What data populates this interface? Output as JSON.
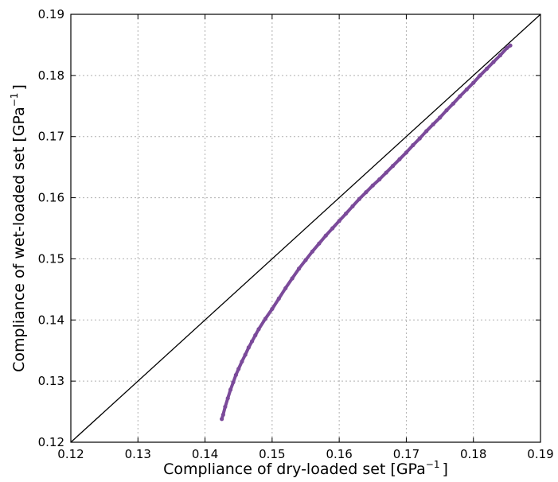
{
  "chart_data": {
    "type": "scatter",
    "title": "",
    "xlabel_main": "Compliance of dry-loaded set [GPa",
    "xlabel_sup": "−1",
    "xlabel_end": "]",
    "ylabel_main": "Compliance of wet-loaded set [GPa",
    "ylabel_sup": "−1",
    "ylabel_end": "]",
    "xlim": [
      0.12,
      0.19
    ],
    "ylim": [
      0.12,
      0.19
    ],
    "xticks": [
      0.12,
      0.13,
      0.14,
      0.15,
      0.16,
      0.17,
      0.18,
      0.19
    ],
    "yticks": [
      0.12,
      0.13,
      0.14,
      0.15,
      0.16,
      0.17,
      0.18,
      0.19
    ],
    "tick_labels": [
      "0.12",
      "0.13",
      "0.14",
      "0.15",
      "0.16",
      "0.17",
      "0.18",
      "0.19"
    ],
    "grid": true,
    "grid_style": "dotted",
    "reference_line": {
      "x": [
        0.12,
        0.19
      ],
      "y": [
        0.12,
        0.19
      ],
      "color": "#000000"
    },
    "series": [
      {
        "color": "#7b4a9a",
        "x": [
          0.1425,
          0.1427,
          0.143,
          0.1434,
          0.1438,
          0.1442,
          0.1446,
          0.145,
          0.1455,
          0.146,
          0.1465,
          0.147,
          0.1475,
          0.148,
          0.149,
          0.15,
          0.151,
          0.152,
          0.153,
          0.154,
          0.155,
          0.156,
          0.157,
          0.158,
          0.159,
          0.16,
          0.161,
          0.162,
          0.163,
          0.164,
          0.165,
          0.166,
          0.167,
          0.168,
          0.169,
          0.17,
          0.171,
          0.172,
          0.173,
          0.174,
          0.175,
          0.176,
          0.177,
          0.178,
          0.179,
          0.18,
          0.181,
          0.182,
          0.183,
          0.184,
          0.185,
          0.1855
        ],
        "y": [
          0.1238,
          0.1245,
          0.1258,
          0.1272,
          0.1286,
          0.1298,
          0.131,
          0.132,
          0.1332,
          0.1343,
          0.1355,
          0.1365,
          0.1375,
          0.1385,
          0.1402,
          0.1418,
          0.1435,
          0.1452,
          0.1468,
          0.1484,
          0.1498,
          0.1512,
          0.1525,
          0.1538,
          0.155,
          0.1562,
          0.1574,
          0.1586,
          0.1598,
          0.1609,
          0.162,
          0.163,
          0.1641,
          0.1652,
          0.1663,
          0.1674,
          0.1686,
          0.1697,
          0.1709,
          0.172,
          0.1731,
          0.1743,
          0.1754,
          0.1766,
          0.1777,
          0.1788,
          0.18,
          0.1811,
          0.1822,
          0.1833,
          0.1845,
          0.1849
        ]
      }
    ]
  }
}
